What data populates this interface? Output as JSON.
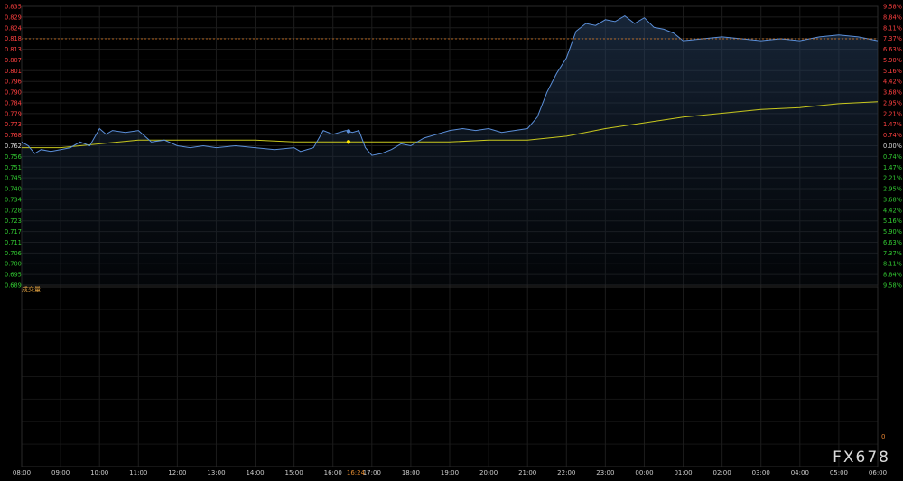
{
  "chart_data": {
    "type": "line",
    "title": "",
    "volume_label": "成交量",
    "volume_zero_label": "0",
    "reference_price": 0.762,
    "y_ticks_left": [
      "0.835",
      "0.829",
      "0.824",
      "0.818",
      "0.813",
      "0.807",
      "0.801",
      "0.796",
      "0.790",
      "0.784",
      "0.779",
      "0.773",
      "0.768",
      "0.762",
      "0.756",
      "0.751",
      "0.745",
      "0.740",
      "0.734",
      "0.728",
      "0.723",
      "0.717",
      "0.711",
      "0.706",
      "0.700",
      "0.695",
      "0.689"
    ],
    "y_ticks_right": [
      "9.58%",
      "8.84%",
      "8.11%",
      "7.37%",
      "6.63%",
      "5.90%",
      "5.16%",
      "4.42%",
      "3.68%",
      "2.95%",
      "2.21%",
      "1.47%",
      "0.74%",
      "0.00%",
      "0.74%",
      "1.47%",
      "2.21%",
      "2.95%",
      "3.68%",
      "4.42%",
      "5.16%",
      "5.90%",
      "6.63%",
      "7.37%",
      "8.11%",
      "8.84%",
      "9.58%"
    ],
    "x_ticks": [
      "08:00",
      "09:00",
      "10:00",
      "11:00",
      "12:00",
      "13:00",
      "14:00",
      "15:00",
      "16:00",
      "17:00",
      "18:00",
      "19:00",
      "20:00",
      "21:00",
      "22:00",
      "23:00",
      "00:00",
      "01:00",
      "02:00",
      "03:00",
      "04:00",
      "05:00",
      "06:00"
    ],
    "current_time_label": "16:24",
    "ylim": [
      0.689,
      0.835
    ],
    "up_color": "#ff4040",
    "down_color": "#33cc33",
    "line_color": "#5b8fd9",
    "avg_color": "#c8c81e",
    "dotted_line_value": 0.818,
    "series": [
      {
        "role": "price",
        "x": [
          "08:00",
          "08:10",
          "08:20",
          "08:30",
          "08:45",
          "09:00",
          "09:15",
          "09:30",
          "09:45",
          "10:00",
          "10:10",
          "10:20",
          "10:40",
          "11:00",
          "11:20",
          "11:40",
          "12:00",
          "12:20",
          "12:40",
          "13:00",
          "13:30",
          "14:00",
          "14:30",
          "15:00",
          "15:10",
          "15:30",
          "15:45",
          "16:00",
          "16:10",
          "16:20",
          "16:30",
          "16:40",
          "16:50",
          "17:00",
          "17:15",
          "17:30",
          "17:45",
          "18:00",
          "18:20",
          "18:40",
          "19:00",
          "19:20",
          "19:40",
          "20:00",
          "20:20",
          "20:40",
          "21:00",
          "21:15",
          "21:30",
          "21:45",
          "22:00",
          "22:15",
          "22:30",
          "22:45",
          "23:00",
          "23:15",
          "23:30",
          "23:45",
          "00:00",
          "00:15",
          "00:30",
          "00:45",
          "01:00",
          "01:30",
          "02:00",
          "02:30",
          "03:00",
          "03:30",
          "04:00",
          "04:30",
          "05:00",
          "05:30",
          "06:00"
        ],
        "y": [
          0.764,
          0.762,
          0.758,
          0.76,
          0.759,
          0.76,
          0.761,
          0.764,
          0.762,
          0.771,
          0.768,
          0.77,
          0.769,
          0.77,
          0.764,
          0.765,
          0.762,
          0.761,
          0.762,
          0.761,
          0.762,
          0.761,
          0.76,
          0.761,
          0.759,
          0.761,
          0.77,
          0.768,
          0.769,
          0.77,
          0.769,
          0.77,
          0.761,
          0.757,
          0.758,
          0.76,
          0.763,
          0.762,
          0.766,
          0.768,
          0.77,
          0.771,
          0.77,
          0.771,
          0.769,
          0.77,
          0.771,
          0.777,
          0.79,
          0.8,
          0.808,
          0.822,
          0.826,
          0.825,
          0.828,
          0.827,
          0.83,
          0.826,
          0.829,
          0.824,
          0.823,
          0.821,
          0.817,
          0.818,
          0.819,
          0.818,
          0.817,
          0.818,
          0.817,
          0.819,
          0.82,
          0.819,
          0.817
        ]
      },
      {
        "role": "average",
        "x": [
          "08:00",
          "09:00",
          "10:00",
          "11:00",
          "12:00",
          "13:00",
          "14:00",
          "15:00",
          "16:00",
          "17:00",
          "18:00",
          "19:00",
          "20:00",
          "21:00",
          "22:00",
          "23:00",
          "00:00",
          "01:00",
          "02:00",
          "03:00",
          "04:00",
          "05:00",
          "06:00"
        ],
        "y": [
          0.761,
          0.761,
          0.763,
          0.765,
          0.765,
          0.765,
          0.765,
          0.764,
          0.764,
          0.764,
          0.764,
          0.764,
          0.765,
          0.765,
          0.767,
          0.771,
          0.774,
          0.777,
          0.779,
          0.781,
          0.782,
          0.784,
          0.785
        ]
      }
    ],
    "volume_values": []
  },
  "watermark": "FX678"
}
